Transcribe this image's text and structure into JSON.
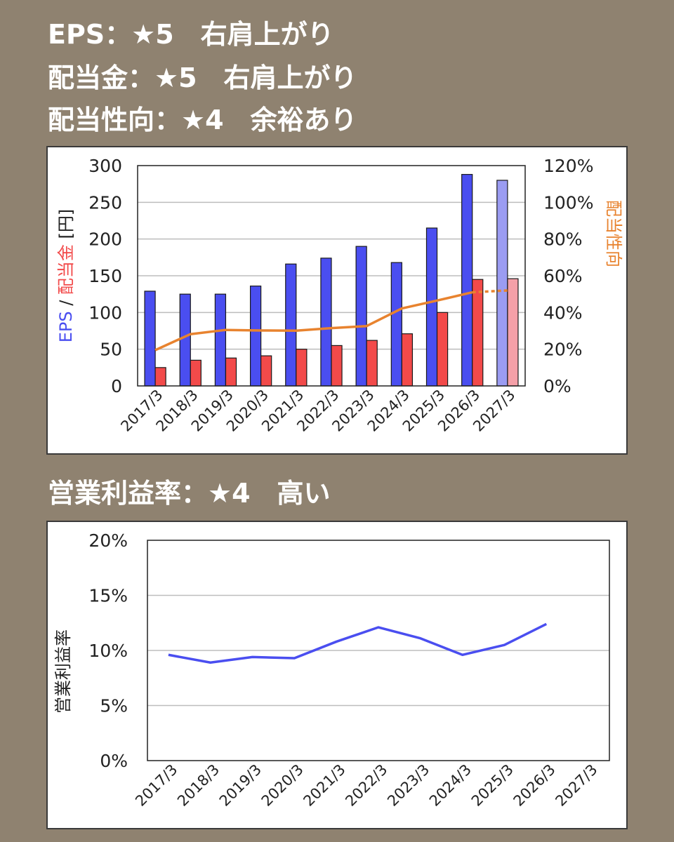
{
  "headings": [
    "EPS：★5　右肩上がり",
    "配当金：★5　右肩上がり",
    "配当性向：★4　余裕あり",
    "営業利益率：★4　高い"
  ],
  "chart_data": [
    {
      "type": "bar",
      "categories": [
        "2017/3",
        "2018/3",
        "2019/3",
        "2020/3",
        "2021/3",
        "2022/3",
        "2023/3",
        "2024/3",
        "2025/3",
        "2026/3",
        "2027/3"
      ],
      "series": [
        {
          "name": "EPS",
          "kind": "bar",
          "axis": "left",
          "color": "#4a4ef0",
          "forecast_color": "#9b9cf2",
          "values": [
            129,
            125,
            125,
            136,
            166,
            174,
            190,
            168,
            215,
            288,
            280
          ]
        },
        {
          "name": "配当金",
          "kind": "bar",
          "axis": "left",
          "color": "#f24a4a",
          "forecast_color": "#f5a0a8",
          "values": [
            25,
            35,
            38,
            41,
            50,
            55,
            62,
            71,
            100,
            145,
            146
          ]
        },
        {
          "name": "配当性向",
          "kind": "line",
          "axis": "right",
          "color": "#e8832f",
          "values": [
            19.5,
            28.2,
            30.5,
            30.2,
            30.1,
            31.5,
            32.6,
            42.2,
            46.5,
            51.0,
            52.0
          ],
          "dashed_from_index": 9
        }
      ],
      "forecast_index": 10,
      "ylim_left": [
        0,
        300
      ],
      "yticks_left": [
        "0",
        "50",
        "100",
        "150",
        "200",
        "250",
        "300"
      ],
      "ylim_right": [
        0,
        120
      ],
      "yticks_right": [
        "0%",
        "20%",
        "40%",
        "60%",
        "80%",
        "100%",
        "120%"
      ],
      "ylabel_left_parts": [
        {
          "text": "EPS",
          "color": "#4a4ef0"
        },
        {
          "text": " / ",
          "color": "#222222"
        },
        {
          "text": "配当金",
          "color": "#f24a4a"
        },
        {
          "text": " [円]",
          "color": "#222222"
        }
      ],
      "ylabel_right": "配当性向",
      "ylabel_right_color": "#e8832f",
      "grid": true
    },
    {
      "type": "line",
      "categories": [
        "2017/3",
        "2018/3",
        "2019/3",
        "2020/3",
        "2021/3",
        "2022/3",
        "2023/3",
        "2024/3",
        "2025/3",
        "2026/3",
        "2027/3"
      ],
      "series": [
        {
          "name": "営業利益率",
          "color": "#4a4ef0",
          "values": [
            9.6,
            8.9,
            9.4,
            9.3,
            10.8,
            12.1,
            11.1,
            9.6,
            10.5,
            12.4,
            null
          ]
        }
      ],
      "ylim": [
        0,
        20
      ],
      "yticks": [
        "0%",
        "5%",
        "10%",
        "15%",
        "20%"
      ],
      "ylabel": "営業利益率",
      "grid": true
    }
  ]
}
